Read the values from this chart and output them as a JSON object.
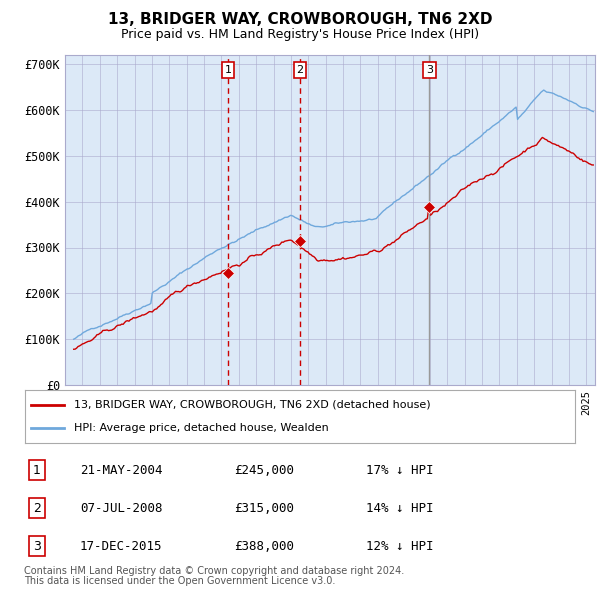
{
  "title": "13, BRIDGER WAY, CROWBOROUGH, TN6 2XD",
  "subtitle": "Price paid vs. HM Land Registry's House Price Index (HPI)",
  "ylabel_ticks": [
    "£0",
    "£100K",
    "£200K",
    "£300K",
    "£400K",
    "£500K",
    "£600K",
    "£700K"
  ],
  "ytick_values": [
    0,
    100000,
    200000,
    300000,
    400000,
    500000,
    600000,
    700000
  ],
  "ylim": [
    0,
    720000
  ],
  "purchases": [
    {
      "date_num": 2004.39,
      "price": 245000,
      "label": "1"
    },
    {
      "date_num": 2008.52,
      "price": 315000,
      "label": "2"
    },
    {
      "date_num": 2015.96,
      "price": 388000,
      "label": "3"
    }
  ],
  "legend_line1": "13, BRIDGER WAY, CROWBOROUGH, TN6 2XD (detached house)",
  "legend_line2": "HPI: Average price, detached house, Wealden",
  "table": [
    {
      "num": "1",
      "date": "21-MAY-2004",
      "price": "£245,000",
      "hpi": "17% ↓ HPI"
    },
    {
      "num": "2",
      "date": "07-JUL-2008",
      "price": "£315,000",
      "hpi": "14% ↓ HPI"
    },
    {
      "num": "3",
      "date": "17-DEC-2015",
      "price": "£388,000",
      "hpi": "12% ↓ HPI"
    }
  ],
  "footer1": "Contains HM Land Registry data © Crown copyright and database right 2024.",
  "footer2": "This data is licensed under the Open Government Licence v3.0.",
  "hpi_color": "#6fa8dc",
  "price_color": "#cc0000",
  "bg_color": "#dce9f7",
  "grid_color": "#aaaacc",
  "xmin": 1995.5,
  "xmax": 2025.5
}
